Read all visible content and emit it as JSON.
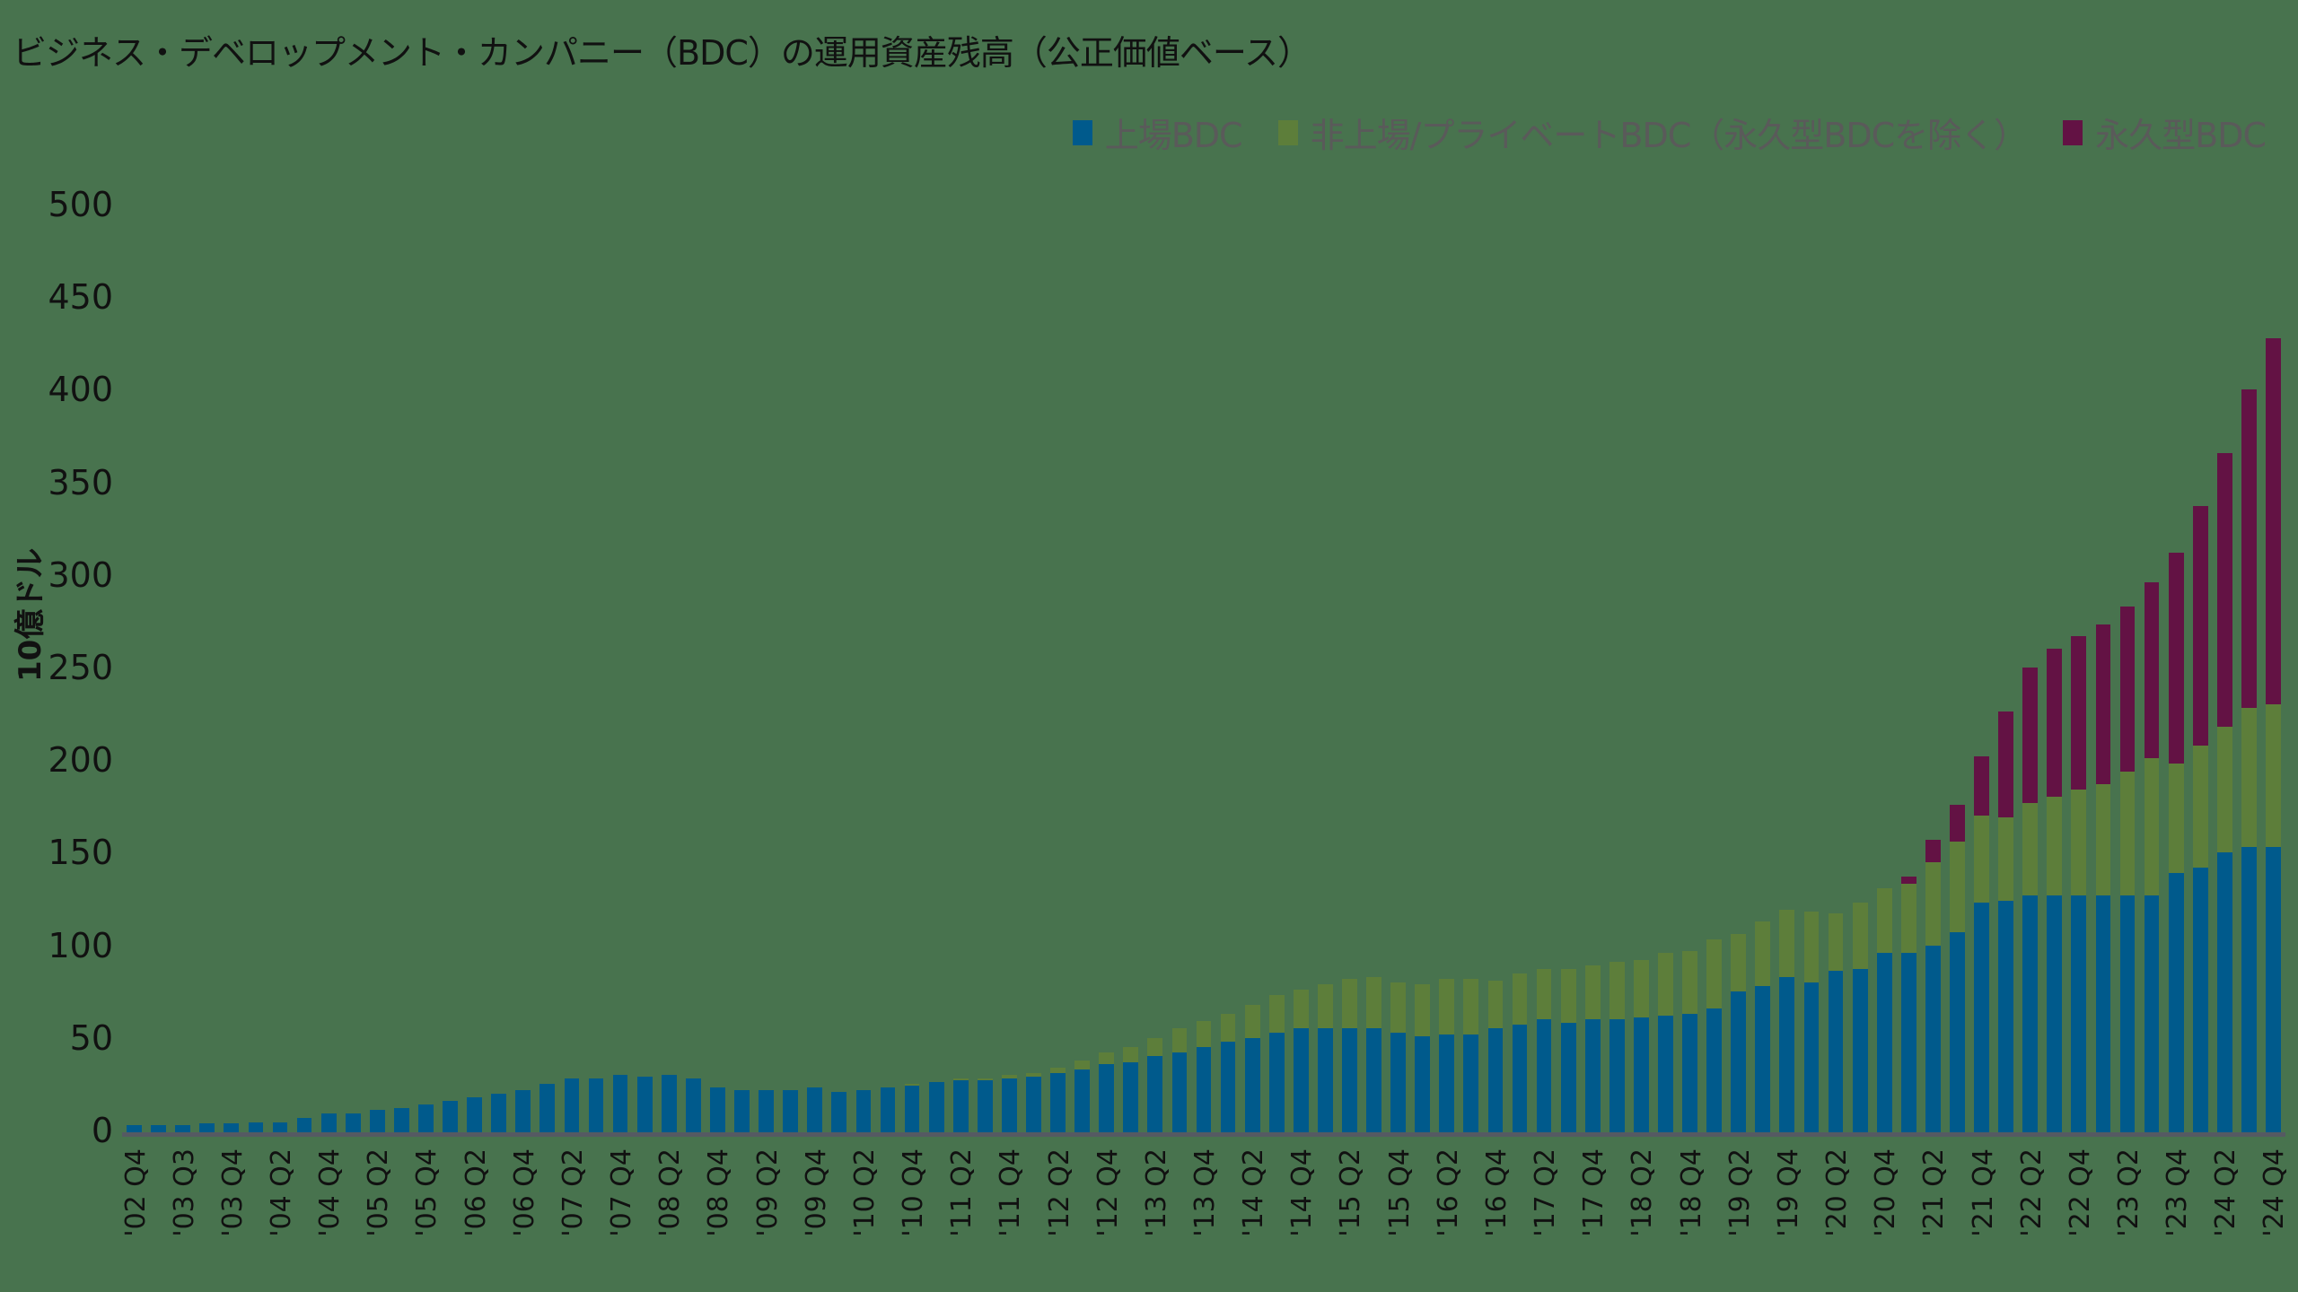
{
  "title": "ビジネス・デベロップメント・カンパニー（BDC）の運用資産残高（公正価値ベース）",
  "legend": [
    {
      "label": "上場BDC",
      "color": "#005A8C"
    },
    {
      "label": "非上場/プライベートBDC（永久型BDCを除く）",
      "color": "#5D7E3A"
    },
    {
      "label": "永久型BDC",
      "color": "#631244"
    }
  ],
  "y_axis": {
    "label": "10億ドル",
    "ticks": [
      "0",
      "50",
      "100",
      "150",
      "200",
      "250",
      "300",
      "350",
      "400",
      "450",
      "500"
    ]
  },
  "chart_data": {
    "type": "bar",
    "stacked": true,
    "title": "ビジネス・デベロップメント・カンパニー（BDC）の運用資産残高（公正価値ベース）",
    "xlabel": "",
    "ylabel": "10億ドル",
    "ylim": [
      0,
      500
    ],
    "grid": false,
    "legend_position": "top-right",
    "x_tick_labels": [
      "'02 Q4",
      "'03 Q3",
      "'03 Q4",
      "'04 Q2",
      "'04 Q4",
      "'05 Q2",
      "'05 Q4",
      "'06 Q2",
      "'06 Q4",
      "'07 Q2",
      "'07 Q4",
      "'08 Q2",
      "'08 Q4",
      "'09 Q2",
      "'09 Q4",
      "'10 Q2",
      "'10 Q4",
      "'11 Q2",
      "'11 Q4",
      "'12 Q2",
      "'12 Q4",
      "'13 Q2",
      "'13 Q4",
      "'14 Q2",
      "'14 Q4",
      "'15 Q2",
      "'15 Q4",
      "'16 Q2",
      "'16 Q4",
      "'17 Q2",
      "'17 Q4",
      "'18 Q2",
      "'18 Q4",
      "'19 Q2",
      "'19 Q4",
      "'20 Q2",
      "'20 Q4",
      "'21 Q2",
      "'21 Q4",
      "'22 Q2",
      "'22 Q4",
      "'23 Q2",
      "'23 Q4",
      "'24 Q2",
      "'24 Q4"
    ],
    "series": [
      {
        "name": "上場BDC",
        "color": "#005A8C",
        "values": [
          4,
          4,
          4,
          5,
          5,
          5.5,
          5.5,
          8,
          10,
          10,
          12,
          13,
          15,
          17,
          19,
          21,
          23,
          26,
          29,
          29,
          31,
          30,
          31,
          29,
          24,
          23,
          23,
          23,
          24,
          22,
          23,
          24,
          25,
          27,
          28,
          28,
          29,
          30,
          32,
          34,
          37,
          38,
          41,
          43,
          46,
          49,
          51,
          54,
          56,
          56,
          56,
          56,
          54,
          52,
          53,
          53,
          56,
          58,
          61,
          59,
          61,
          61,
          62,
          63,
          64,
          67,
          76,
          79,
          84,
          81,
          87,
          88,
          97,
          97,
          101,
          108,
          124,
          125,
          128,
          128,
          128,
          128,
          128,
          128,
          140,
          143,
          151,
          154,
          154
        ]
      },
      {
        "name": "非上場/プライベートBDC（永久型BDCを除く）",
        "color": "#5D7E3A",
        "values": [
          0,
          0,
          0,
          0,
          0,
          0,
          0,
          0,
          0,
          0,
          0,
          0,
          0,
          0,
          0,
          0,
          0,
          0,
          0,
          0,
          0,
          0,
          0,
          0,
          0,
          0,
          0,
          0,
          0,
          0,
          0,
          0,
          1,
          0,
          1,
          1,
          2,
          2,
          3,
          5,
          6,
          8,
          10,
          13,
          14,
          15,
          18,
          20,
          21,
          24,
          27,
          28,
          27,
          28,
          30,
          30,
          26,
          28,
          27,
          29,
          29,
          31,
          31,
          34,
          34,
          37,
          31,
          35,
          36,
          38,
          31,
          36,
          35,
          37,
          45,
          49,
          47,
          45,
          50,
          53,
          57,
          60,
          67,
          74,
          59,
          66,
          68,
          75,
          77
        ]
      },
      {
        "name": "永久型BDC",
        "color": "#631244",
        "values": [
          0,
          0,
          0,
          0,
          0,
          0,
          0,
          0,
          0,
          0,
          0,
          0,
          0,
          0,
          0,
          0,
          0,
          0,
          0,
          0,
          0,
          0,
          0,
          0,
          0,
          0,
          0,
          0,
          0,
          0,
          0,
          0,
          0,
          0,
          0,
          0,
          0,
          0,
          0,
          0,
          0,
          0,
          0,
          0,
          0,
          0,
          0,
          0,
          0,
          0,
          0,
          0,
          0,
          0,
          0,
          0,
          0,
          0,
          0,
          0,
          0,
          0,
          0,
          0,
          0,
          0,
          0,
          0,
          0,
          0,
          0,
          0,
          0,
          4,
          12,
          20,
          32,
          57,
          73,
          80,
          83,
          86,
          89,
          95,
          114,
          129,
          148,
          172,
          198
        ]
      }
    ]
  }
}
